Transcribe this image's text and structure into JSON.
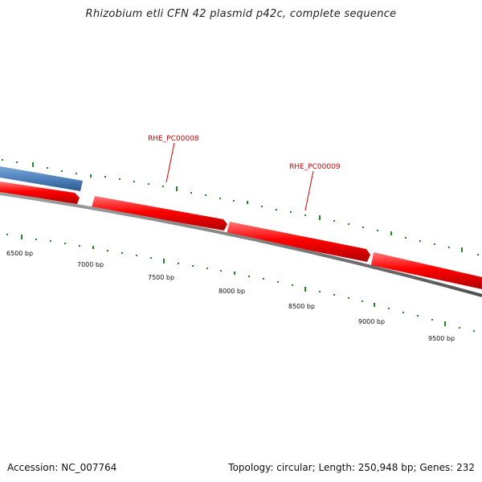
{
  "title": "Rhizobium etli CFN 42 plasmid p42c, complete sequence",
  "footer": {
    "accession": "Accession: NC_007764",
    "summary": "Topology: circular; Length: 250,948 bp; Genes: 232"
  },
  "colors": {
    "forward_gene": "#ff0000",
    "blue_gene": "#4f81bd",
    "backbone": "#7f7f7f",
    "ticks": "#228b22",
    "gene_label": "#cc0000"
  },
  "tick_labels": [
    "6500 bp",
    "7000 bp",
    "7500 bp",
    "8000 bp",
    "8500 bp",
    "9000 bp",
    "9500 bp"
  ],
  "gene_labels": [
    "RHE_PC00008",
    "RHE_PC00009"
  ]
}
